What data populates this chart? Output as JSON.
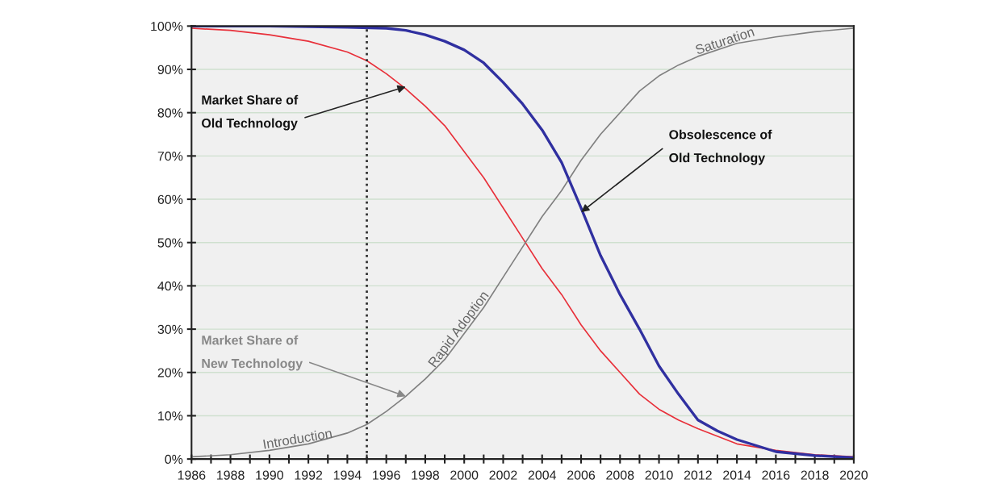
{
  "chart_data": {
    "type": "line",
    "xlim": [
      1986,
      2020
    ],
    "xticks": [
      1986,
      {
        "value": 1987,
        "label": null
      },
      1988,
      {
        "value": 1989,
        "label": null
      },
      1990,
      {
        "value": 1991,
        "label": null
      },
      1992,
      {
        "value": 1993,
        "label": null
      },
      1994,
      {
        "value": 1995,
        "label": null
      },
      1996,
      {
        "value": 1997,
        "label": null
      },
      1998,
      {
        "value": 1999,
        "label": null
      },
      2000,
      {
        "value": 2001,
        "label": null
      },
      2002,
      {
        "value": 2003,
        "label": null
      },
      2004,
      {
        "value": 2005,
        "label": null
      },
      2006,
      {
        "value": 2007,
        "label": null
      },
      2008,
      {
        "value": 2009,
        "label": null
      },
      2010,
      {
        "value": 2011,
        "label": null
      },
      2012,
      {
        "value": 2013,
        "label": null
      },
      2014,
      {
        "value": 2015,
        "label": null
      },
      2016,
      {
        "value": 2017,
        "label": null
      },
      2018,
      {
        "value": 2019,
        "label": null
      },
      2020
    ],
    "ylim": [
      0,
      100
    ],
    "yticks": [
      {
        "value": 0,
        "label": "0%"
      },
      {
        "value": 10,
        "label": "10%"
      },
      {
        "value": 20,
        "label": "20%"
      },
      {
        "value": 30,
        "label": "30%"
      },
      {
        "value": 40,
        "label": "40%"
      },
      {
        "value": 50,
        "label": "50%"
      },
      {
        "value": 60,
        "label": "60%"
      },
      {
        "value": 70,
        "label": "70%"
      },
      {
        "value": 80,
        "label": "80%"
      },
      {
        "value": 90,
        "label": "90%"
      },
      {
        "value": 100,
        "label": "100%"
      }
    ],
    "grid": "y",
    "marker": "none",
    "line_style": "solid",
    "series": [
      {
        "color": "#e8303a",
        "x": [
          1986,
          1988,
          1990,
          1992,
          1994,
          1995,
          1996,
          1997,
          1998,
          1999,
          2000,
          2001,
          2002,
          2003,
          2004,
          2005,
          2006,
          2007,
          2008,
          2009,
          2010,
          2011,
          2012,
          2014,
          2016,
          2018,
          2020
        ],
        "values": [
          99.5,
          99,
          98,
          96.5,
          94,
          92,
          89,
          85.5,
          81.5,
          77,
          71,
          65,
          58,
          51,
          44,
          38,
          31,
          25,
          20,
          15,
          11.5,
          9,
          7,
          3.5,
          2,
          1,
          0.5
        ]
      },
      {
        "color": "#808080",
        "x": [
          1986,
          1988,
          1990,
          1992,
          1994,
          1995,
          1996,
          1997,
          1998,
          1999,
          2000,
          2001,
          2002,
          2003,
          2004,
          2005,
          2006,
          2007,
          2008,
          2009,
          2010,
          2011,
          2012,
          2014,
          2016,
          2018,
          2020
        ],
        "values": [
          0.5,
          1,
          2,
          3.5,
          6,
          8,
          11,
          14.5,
          18.5,
          23,
          29,
          35,
          42,
          49,
          56,
          62,
          69,
          75,
          80,
          85,
          88.5,
          91,
          93,
          96,
          97.5,
          98.7,
          99.5
        ]
      },
      {
        "color": "#3030a0",
        "x": [
          1986,
          1990,
          1994,
          1996,
          1997,
          1998,
          1999,
          2000,
          2001,
          2002,
          2003,
          2004,
          2005,
          2006,
          2007,
          2008,
          2009,
          2010,
          2011,
          2012,
          2013,
          2014,
          2016,
          2018,
          2020
        ],
        "values": [
          100,
          100,
          99.7,
          99.5,
          99,
          98,
          96.5,
          94.5,
          91.5,
          87,
          82,
          76,
          68.5,
          58,
          47,
          38,
          30,
          21.5,
          15,
          9,
          6.5,
          4.5,
          1.7,
          0.8,
          0.3
        ]
      }
    ],
    "ref_lines": [
      {
        "axis": "x",
        "value": 1995,
        "color": "#333333",
        "line_style": "dotted"
      }
    ],
    "annotations": [
      {
        "text": "Market Share of\nOld Technology",
        "x": 1997,
        "y": 86
      },
      {
        "text": "Obsolescence of\nOld Technology",
        "x": 2006,
        "y": 57
      },
      {
        "text": "Market Share of\nNew Technology",
        "x": 1997,
        "y": 14.5
      },
      {
        "text": "Introduction",
        "x": 1991.5,
        "y": 3
      },
      {
        "text": "Rapid Adoption",
        "x": 2000,
        "y": 29
      },
      {
        "text": "Saturation",
        "x": 2013.5,
        "y": 95
      }
    ]
  }
}
